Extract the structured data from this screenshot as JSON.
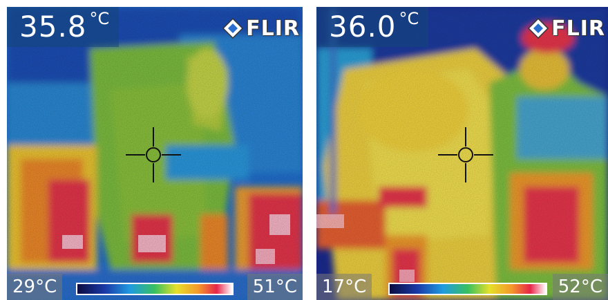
{
  "images": [
    {
      "reading": "35.8",
      "unit": "°C",
      "brand": "FLIR",
      "scale_min": "29°C",
      "scale_max": "51°C"
    },
    {
      "reading": "36.0",
      "unit": "°C",
      "brand": "FLIR",
      "scale_min": "17°C",
      "scale_max": "52°C"
    }
  ],
  "palette": {
    "cold": "#1a3aa8",
    "cool": "#1f9be0",
    "mid": "#38c060",
    "warm": "#e6e02a",
    "hot": "#e8264a",
    "max": "#ffffff"
  }
}
